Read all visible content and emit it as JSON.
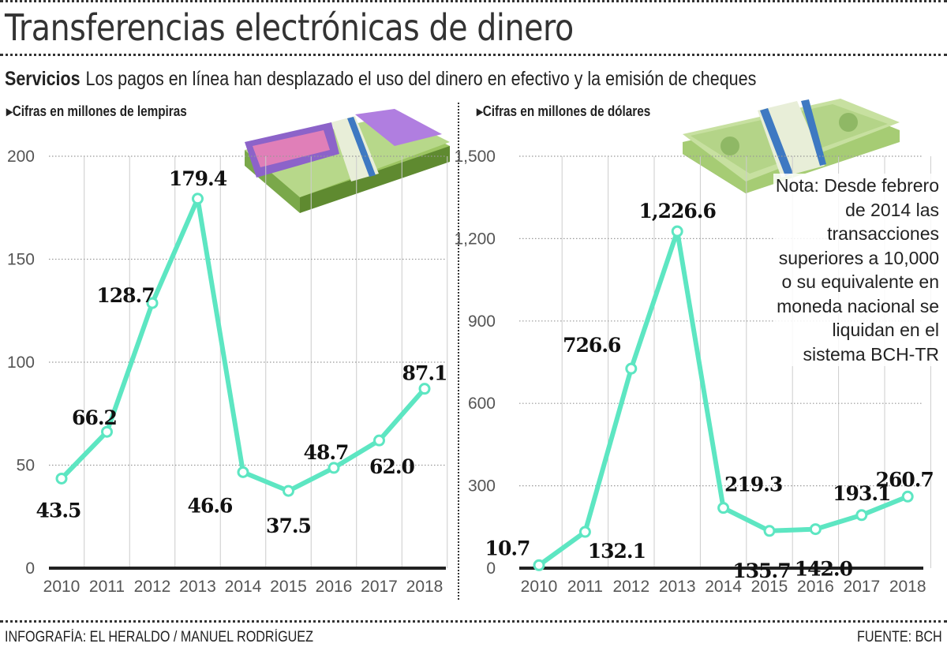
{
  "header": {
    "title": "Transferencias electrónicas de dinero",
    "subtitle_lead": "Servicios",
    "subtitle": "Los pagos en línea han desplazado el uso del dinero en efectivo y la emisión de cheques"
  },
  "footer": {
    "credit": "INFOGRAFÍA: EL HERALDO / MANUEL RODRÍGUEZ",
    "source": "FUENTE: BCH"
  },
  "note": "Nota: Desde febrero de 2014 las transacciones superiores a 10,000 o su equivalente en moneda nacional se liquidan en el sistema BCH-TR",
  "colors": {
    "line": "#5de6c2",
    "marker_fill": "#ffffff",
    "axis": "#222222",
    "grid": "#cccccc"
  },
  "chart_data": [
    {
      "type": "line",
      "unit_label": "Cifras en millones de lempiras",
      "categories": [
        "2010",
        "2011",
        "2012",
        "2013",
        "2014",
        "2015",
        "2016",
        "2017",
        "2018"
      ],
      "values": [
        43.5,
        66.2,
        128.7,
        179.4,
        46.6,
        37.5,
        48.7,
        62.0,
        87.1
      ],
      "data_labels": [
        "43.5",
        "66.2",
        "128.7",
        "179.4",
        "46.6",
        "37.5",
        "48.7",
        "62.0",
        "87.1"
      ],
      "ylim": [
        0,
        200
      ],
      "yticks": [
        0,
        50,
        100,
        150,
        200
      ],
      "ytick_labels": [
        "0",
        "50",
        "100",
        "150",
        "200"
      ],
      "grid": true,
      "illustration": "lempira-banknote-stack"
    },
    {
      "type": "line",
      "unit_label": "Cifras en millones de dólares",
      "categories": [
        "2010",
        "2011",
        "2012",
        "2013",
        "2014",
        "2015",
        "2016",
        "2017",
        "2018"
      ],
      "values": [
        10.7,
        132.1,
        726.6,
        1226.6,
        219.3,
        135.7,
        142.0,
        193.1,
        260.7
      ],
      "data_labels": [
        "10.7",
        "132.1",
        "726.6",
        "1,226.6",
        "219.3",
        "135.7",
        "142.0",
        "193.1",
        "260.7"
      ],
      "ylim": [
        0,
        1500
      ],
      "yticks": [
        0,
        300,
        600,
        900,
        1200,
        1500
      ],
      "ytick_labels": [
        "0",
        "300",
        "600",
        "900",
        "1,200",
        "1,500"
      ],
      "grid": true,
      "illustration": "dollar-banknote-stack"
    }
  ]
}
